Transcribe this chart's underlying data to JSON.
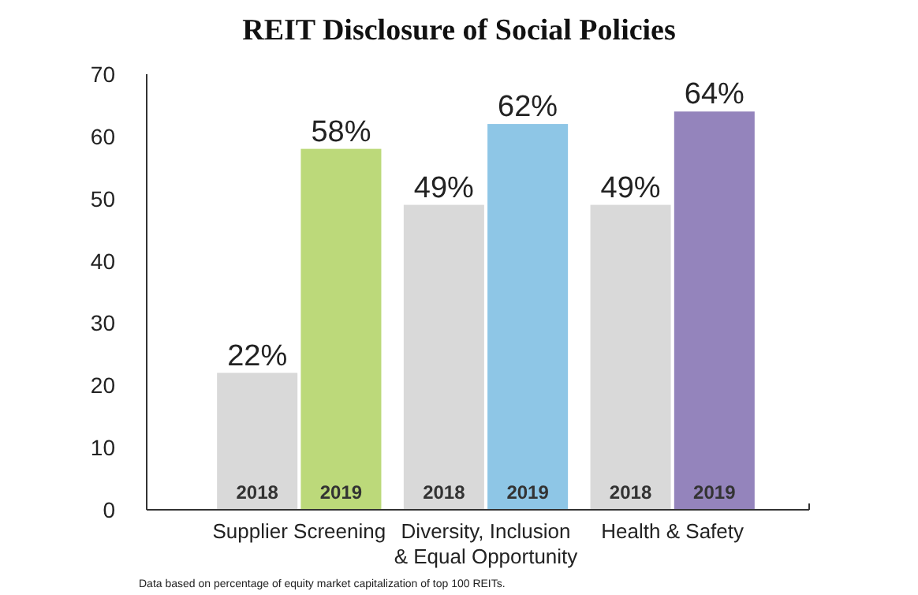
{
  "chart_data": {
    "type": "bar",
    "title": "REIT Disclosure of Social Policies",
    "categories": [
      "Supplier Screening",
      "Diversity, Inclusion & Equal Opportunity",
      "Health & Safety"
    ],
    "series": [
      {
        "name": "2018",
        "color": "#d9d9d9",
        "values": [
          22,
          49,
          49
        ],
        "value_labels": [
          "22%",
          "49%",
          "49%"
        ]
      },
      {
        "name": "2019",
        "colors": [
          "#bcd97a",
          "#8ec6e6",
          "#9484bc"
        ],
        "values": [
          58,
          62,
          64
        ],
        "value_labels": [
          "58%",
          "62%",
          "64%"
        ]
      }
    ],
    "ylim": [
      0,
      70
    ],
    "yticks": [
      0,
      10,
      20,
      30,
      40,
      50,
      60,
      70
    ],
    "grid": false,
    "annotations": [
      "Data based on percentage of equity market capitalization of top 100 REITs."
    ]
  }
}
